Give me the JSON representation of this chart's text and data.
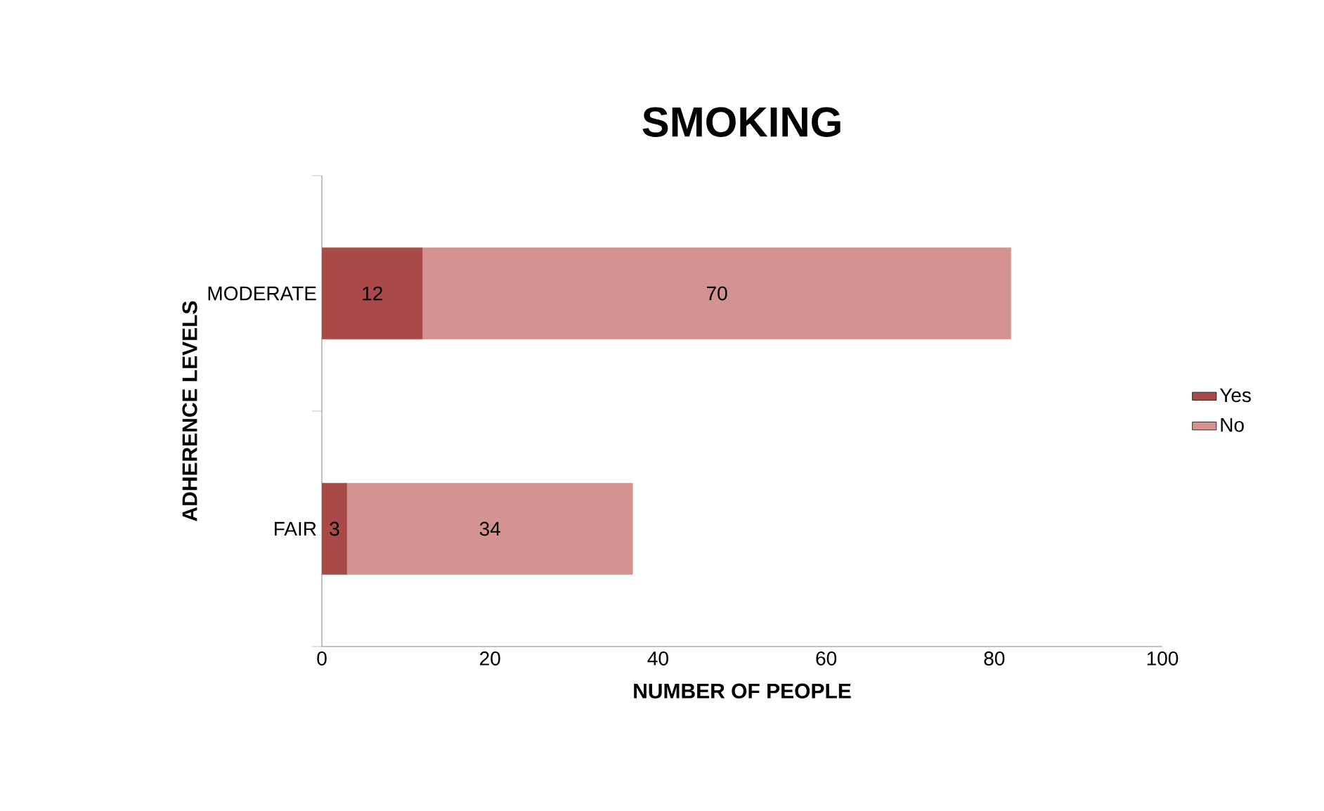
{
  "chart_data": {
    "type": "bar",
    "orientation": "horizontal",
    "stacked": true,
    "title": "SMOKING",
    "xlabel": "NUMBER OF PEOPLE",
    "ylabel": "ADHERENCE LEVELS",
    "categories": [
      "MODERATE",
      "FAIR"
    ],
    "series": [
      {
        "name": "Yes",
        "color": "#a94a4a",
        "values": [
          12,
          3
        ]
      },
      {
        "name": "No",
        "color": "#d49391",
        "values": [
          70,
          34
        ]
      }
    ],
    "xlim": [
      0,
      100
    ],
    "xticks": [
      0,
      20,
      40,
      60,
      80,
      100
    ],
    "grid": false,
    "legend": "right",
    "data_labels": true
  }
}
